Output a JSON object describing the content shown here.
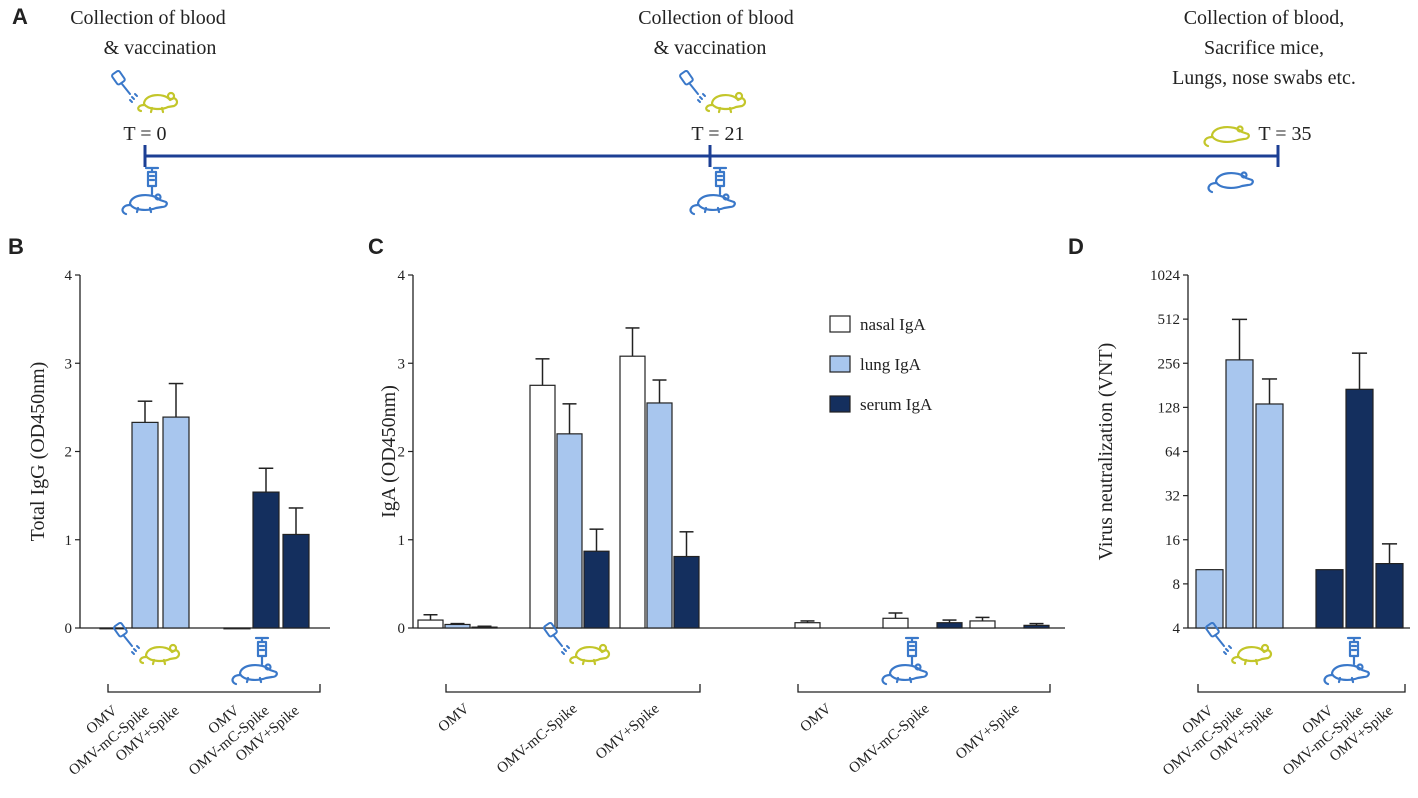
{
  "colors": {
    "timeline": "#1c3f94",
    "lung": "#a8c6ee",
    "serum": "#142f5e",
    "nasal": "#ffffff",
    "mouse_yellow": "#c3c62a",
    "mouse_blue": "#3a78c9",
    "ink": "#222222"
  },
  "panelA": {
    "letter": "A",
    "events": [
      {
        "line1": "Collection of blood",
        "line2": "& vaccination",
        "line3": "",
        "time": "T = 0"
      },
      {
        "line1": "Collection of blood",
        "line2": "& vaccination",
        "line3": "",
        "time": "T = 21"
      },
      {
        "line1": "Collection of blood,",
        "line2": "Sacrifice mice,",
        "line3": "Lungs, nose swabs etc.",
        "time": "T = 35"
      }
    ]
  },
  "chart_data": [
    {
      "panel": "B",
      "type": "bar",
      "ylabel": "Total IgG (OD450nm)",
      "ylim": [
        0,
        4
      ],
      "yticks": [
        0,
        1,
        2,
        3,
        4
      ],
      "categories": [
        "OMV",
        "OMV-mC-Spike",
        "OMV+Spike",
        "OMV",
        "OMV-mC-Spike",
        "OMV+Spike"
      ],
      "groups": [
        "intranasal",
        "intramuscular"
      ],
      "values": [
        0.0,
        2.33,
        2.39,
        0.0,
        1.54,
        1.06
      ],
      "errors": [
        0.0,
        0.24,
        0.38,
        0.0,
        0.27,
        0.3
      ],
      "colors": [
        "lung",
        "lung",
        "lung",
        "serum",
        "serum",
        "serum"
      ]
    },
    {
      "panel": "C",
      "type": "bar",
      "ylabel": "IgA (OD450nm)",
      "ylim": [
        0,
        4
      ],
      "yticks": [
        0,
        1,
        2,
        3,
        4
      ],
      "categories": [
        "OMV",
        "OMV-mC-Spike",
        "OMV+Spike",
        "OMV",
        "OMV-mC-Spike",
        "OMV+Spike"
      ],
      "groups": [
        "intranasal",
        "intramuscular"
      ],
      "series": [
        {
          "name": "nasal IgA",
          "color": "nasal",
          "values": [
            0.09,
            2.75,
            3.08,
            0.06,
            0.11,
            0.08
          ],
          "errors": [
            0.06,
            0.3,
            0.32,
            0.02,
            0.06,
            0.04
          ]
        },
        {
          "name": "lung IgA",
          "color": "lung",
          "values": [
            0.04,
            2.2,
            2.55,
            0.0,
            0.0,
            0.0
          ],
          "errors": [
            0.01,
            0.34,
            0.26,
            0.0,
            0.0,
            0.0
          ]
        },
        {
          "name": "serum IgA",
          "color": "serum",
          "values": [
            0.01,
            0.87,
            0.81,
            0.0,
            0.06,
            0.03
          ],
          "errors": [
            0.01,
            0.25,
            0.28,
            0.0,
            0.03,
            0.02
          ]
        }
      ]
    },
    {
      "panel": "D",
      "type": "bar",
      "scale": "log2",
      "ylabel": "Virus neutralization (VNT)",
      "ylim": [
        4,
        1024
      ],
      "yticks": [
        4,
        8,
        16,
        32,
        64,
        128,
        256,
        512,
        1024
      ],
      "categories": [
        "OMV",
        "OMV-mC-Spike",
        "OMV+Spike",
        "OMV",
        "OMV-mC-Spike",
        "OMV+Spike"
      ],
      "groups": [
        "intranasal",
        "intramuscular"
      ],
      "values": [
        10,
        270,
        135,
        10,
        170,
        11
      ],
      "errors_top": [
        10,
        510,
        200,
        10,
        300,
        15
      ],
      "colors": [
        "lung",
        "lung",
        "lung",
        "serum",
        "serum",
        "serum"
      ]
    }
  ]
}
